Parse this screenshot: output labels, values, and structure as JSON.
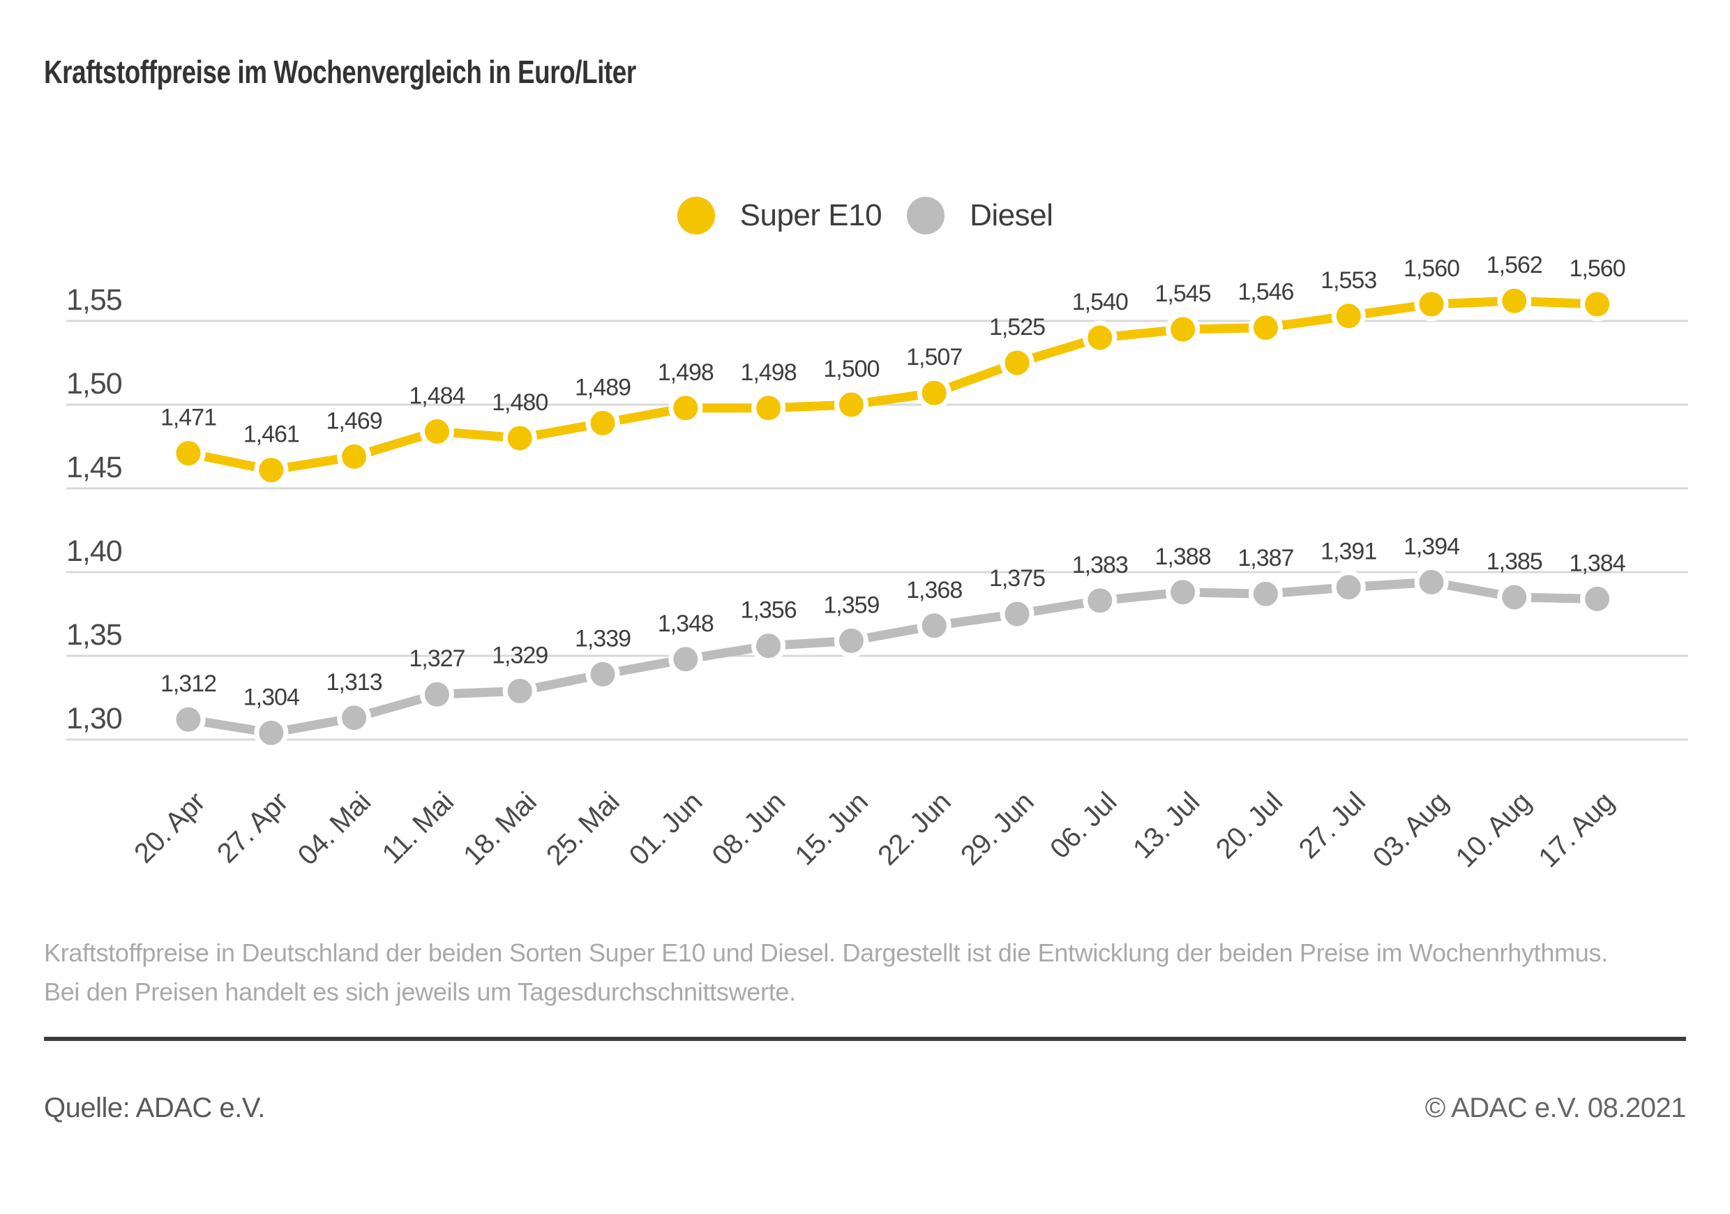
{
  "title": "Kraftstoffpreise im Wochenvergleich in Euro/Liter",
  "chart_data": {
    "type": "line",
    "title": "Kraftstoffpreise im Wochenvergleich in Euro/Liter",
    "categories": [
      "20. Apr",
      "27. Apr",
      "04. Mai",
      "11. Mai",
      "18. Mai",
      "25. Mai",
      "01. Jun",
      "08. Jun",
      "15. Jun",
      "22. Jun",
      "29. Jun",
      "06. Jul",
      "13. Jul",
      "20. Jul",
      "27. Jul",
      "03. Aug",
      "10. Aug",
      "17. Aug"
    ],
    "series": [
      {
        "name": "Super E10",
        "color": "#F5C400",
        "values": [
          1.471,
          1.461,
          1.469,
          1.484,
          1.48,
          1.489,
          1.498,
          1.498,
          1.5,
          1.507,
          1.525,
          1.54,
          1.545,
          1.546,
          1.553,
          1.56,
          1.562,
          1.56
        ],
        "labels": [
          "1,471",
          "1,461",
          "1,469",
          "1,484",
          "1,480",
          "1,489",
          "1,498",
          "1,498",
          "1,500",
          "1,507",
          "1,525",
          "1,540",
          "1,545",
          "1,546",
          "1,553",
          "1,560",
          "1,562",
          "1,560"
        ]
      },
      {
        "name": "Diesel",
        "color": "#BCBCBC",
        "values": [
          1.312,
          1.304,
          1.313,
          1.327,
          1.329,
          1.339,
          1.348,
          1.356,
          1.359,
          1.368,
          1.375,
          1.383,
          1.388,
          1.387,
          1.391,
          1.394,
          1.385,
          1.384
        ],
        "labels": [
          "1,312",
          "1,304",
          "1,313",
          "1,327",
          "1,329",
          "1,339",
          "1,348",
          "1,356",
          "1,359",
          "1,368",
          "1,375",
          "1,383",
          "1,388",
          "1,387",
          "1,391",
          "1,394",
          "1,385",
          "1,384"
        ]
      }
    ],
    "y_ticks": [
      {
        "label": "1,55",
        "value": 1.55
      },
      {
        "label": "1,50",
        "value": 1.5
      },
      {
        "label": "1,45",
        "value": 1.45
      },
      {
        "label": "1,40",
        "value": 1.4
      },
      {
        "label": "1,35",
        "value": 1.35
      },
      {
        "label": "1,30",
        "value": 1.3
      }
    ],
    "ylim": [
      1.285,
      1.575
    ],
    "grid": true,
    "legend_position": "top",
    "colors": {
      "grid": "#D9D9D9",
      "axis_text": "#4A4A4A",
      "data_label": "#3E3E3E",
      "point_outline": "#FFFFFF"
    }
  },
  "description": "Kraftstoffpreise in Deutschland der beiden Sorten Super E10 und Diesel. Dargestellt ist die Entwicklung der beiden Preise im Wochenrhythmus. Bei den Preisen handelt es sich jeweils um Tagesdurchschnittswerte.",
  "footer": {
    "source": "Quelle: ADAC e.V.",
    "copyright": "© ADAC e.V. 08.2021"
  }
}
